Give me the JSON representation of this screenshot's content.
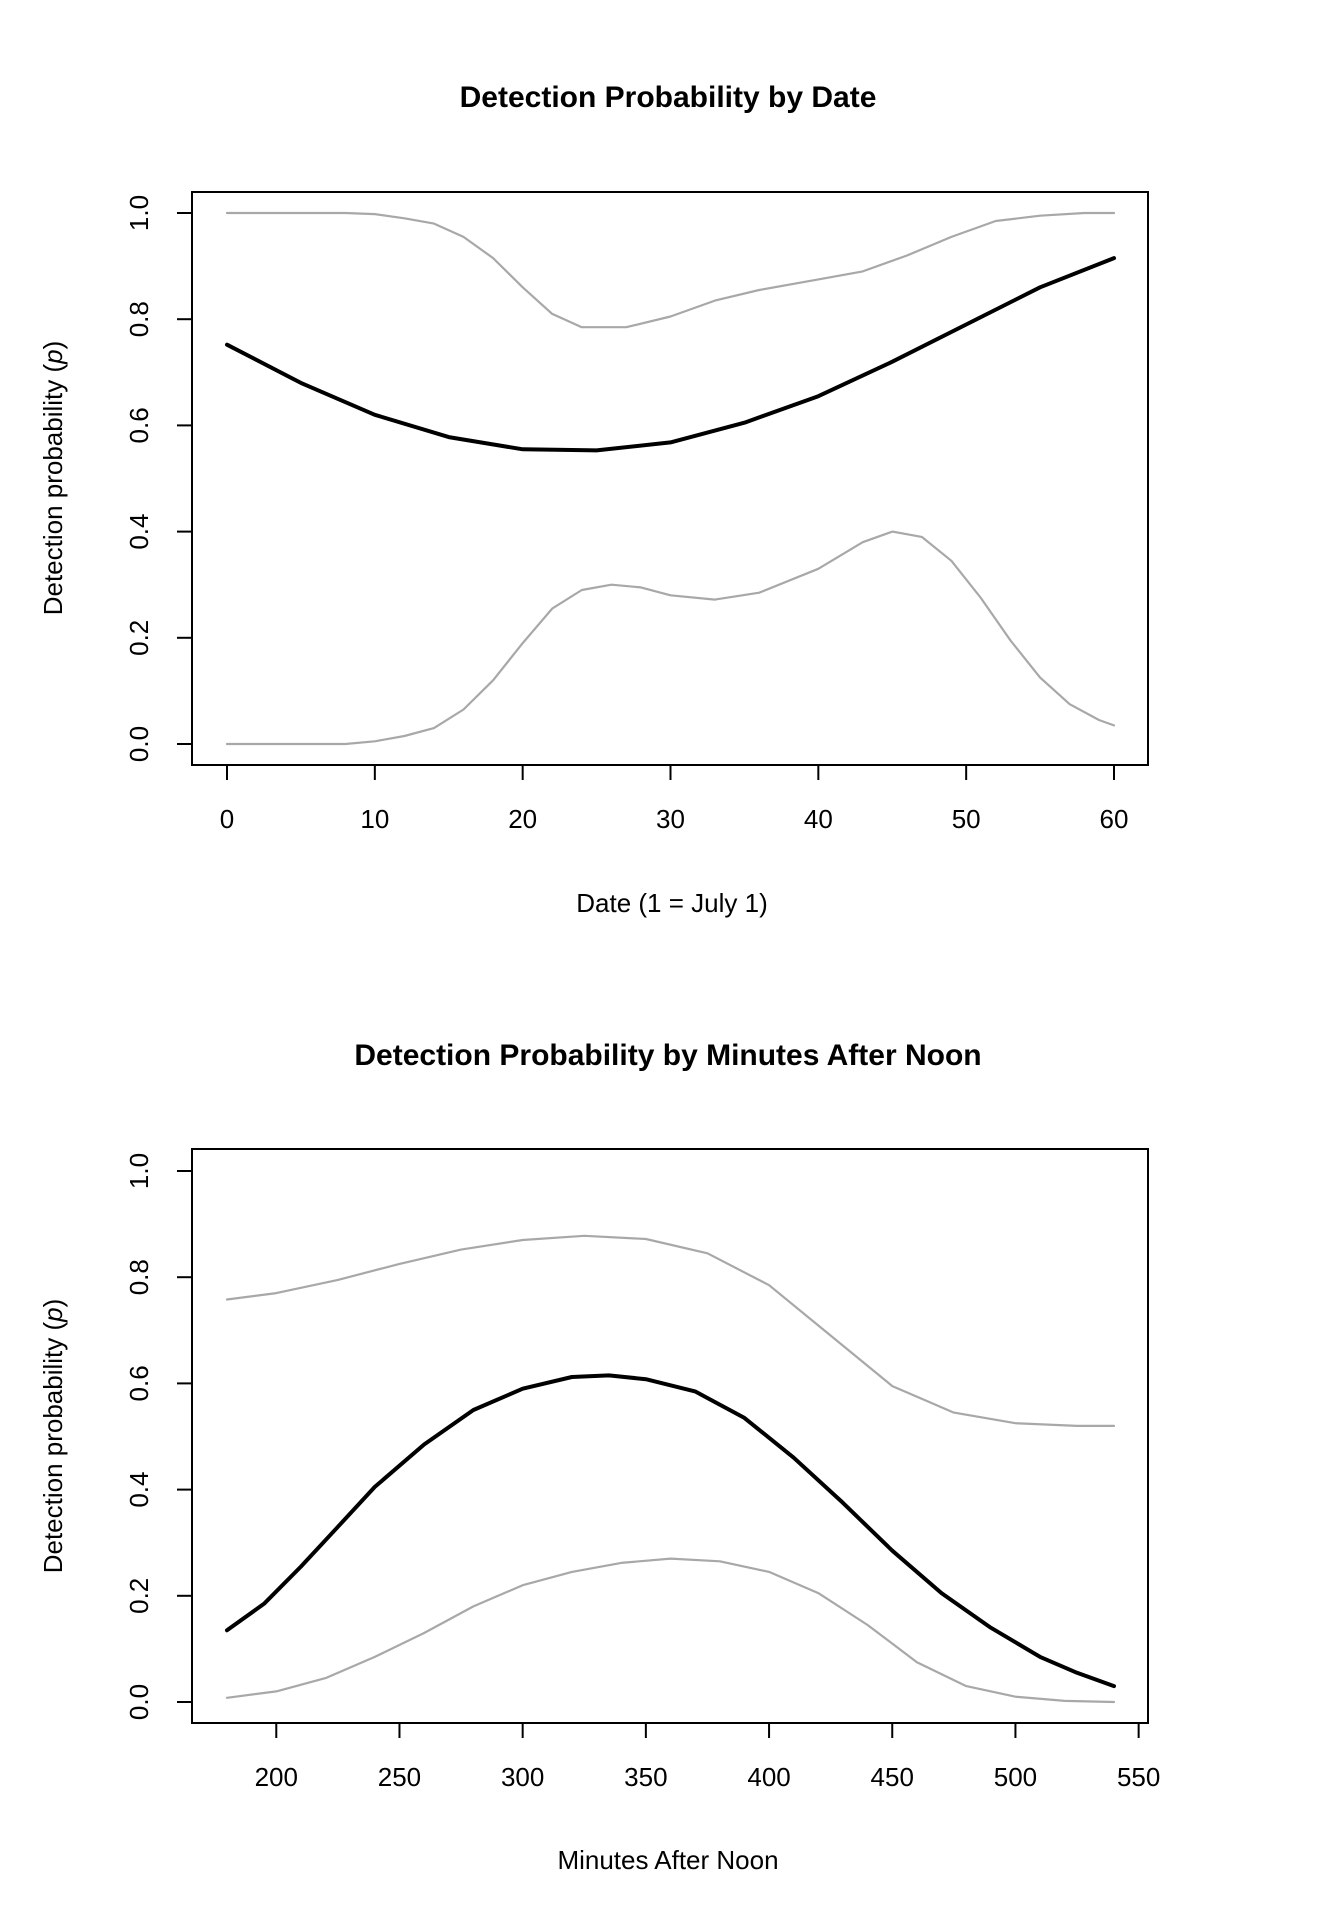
{
  "chart_data": [
    {
      "type": "line",
      "title": "Detection Probability by Date",
      "xlabel": "Date (1 = July 1)",
      "ylabel": "Detection probability (",
      "ylabel_italic": "p",
      "ylabel_end": ")",
      "xlim": [
        0,
        60
      ],
      "ylim": [
        0,
        1
      ],
      "xticks": [
        0,
        10,
        20,
        30,
        40,
        50,
        60
      ],
      "yticks": [
        "0.0",
        "0.2",
        "0.4",
        "0.6",
        "0.8",
        "1.0"
      ],
      "series": [
        {
          "name": "upper",
          "color": "#a8a8a8",
          "x": [
            0,
            4,
            8,
            10,
            12,
            14,
            16,
            18,
            20,
            22,
            24,
            25,
            27,
            30,
            33,
            36,
            40,
            43,
            46,
            49,
            52,
            55,
            58,
            60
          ],
          "y": [
            1.0,
            1.0,
            1.0,
            0.998,
            0.99,
            0.98,
            0.955,
            0.915,
            0.86,
            0.81,
            0.785,
            0.785,
            0.785,
            0.805,
            0.835,
            0.855,
            0.875,
            0.89,
            0.92,
            0.955,
            0.985,
            0.995,
            1.0,
            1.0
          ]
        },
        {
          "name": "estimate",
          "color": "#000000",
          "x": [
            0,
            5,
            10,
            15,
            20,
            25,
            30,
            35,
            40,
            45,
            50,
            55,
            60
          ],
          "y": [
            0.752,
            0.68,
            0.62,
            0.578,
            0.555,
            0.553,
            0.568,
            0.605,
            0.655,
            0.72,
            0.79,
            0.86,
            0.915
          ]
        },
        {
          "name": "lower",
          "color": "#a8a8a8",
          "x": [
            0,
            4,
            8,
            10,
            12,
            14,
            16,
            18,
            20,
            22,
            24,
            26,
            28,
            30,
            33,
            36,
            40,
            43,
            45,
            47,
            49,
            51,
            53,
            55,
            57,
            59,
            60
          ],
          "y": [
            0.0,
            0.0,
            0.0,
            0.005,
            0.015,
            0.03,
            0.065,
            0.12,
            0.19,
            0.255,
            0.29,
            0.3,
            0.295,
            0.28,
            0.272,
            0.285,
            0.33,
            0.38,
            0.4,
            0.39,
            0.345,
            0.275,
            0.195,
            0.125,
            0.075,
            0.045,
            0.035
          ]
        }
      ]
    },
    {
      "type": "line",
      "title": "Detection Probability by Minutes After Noon",
      "xlabel": "Minutes After Noon",
      "ylabel": "Detection probability (",
      "ylabel_italic": "p",
      "ylabel_end": ")",
      "xlim": [
        180,
        540
      ],
      "ylim": [
        0,
        1
      ],
      "xticks": [
        200,
        250,
        300,
        350,
        400,
        450,
        500,
        550
      ],
      "yticks": [
        "0.0",
        "0.2",
        "0.4",
        "0.6",
        "0.8",
        "1.0"
      ],
      "series": [
        {
          "name": "upper",
          "color": "#a8a8a8",
          "x": [
            180,
            200,
            225,
            250,
            275,
            300,
            325,
            350,
            375,
            400,
            425,
            450,
            475,
            500,
            525,
            540
          ],
          "y": [
            0.758,
            0.77,
            0.795,
            0.825,
            0.852,
            0.87,
            0.878,
            0.872,
            0.845,
            0.785,
            0.69,
            0.595,
            0.545,
            0.525,
            0.52,
            0.52
          ]
        },
        {
          "name": "estimate",
          "color": "#000000",
          "x": [
            180,
            195,
            210,
            225,
            240,
            260,
            280,
            300,
            320,
            335,
            350,
            370,
            390,
            410,
            430,
            450,
            470,
            490,
            510,
            525,
            540
          ],
          "y": [
            0.135,
            0.185,
            0.255,
            0.33,
            0.405,
            0.485,
            0.55,
            0.59,
            0.612,
            0.615,
            0.608,
            0.585,
            0.535,
            0.46,
            0.375,
            0.285,
            0.205,
            0.14,
            0.085,
            0.055,
            0.03
          ]
        },
        {
          "name": "lower",
          "color": "#a8a8a8",
          "x": [
            180,
            200,
            220,
            240,
            260,
            280,
            300,
            320,
            340,
            360,
            380,
            400,
            420,
            440,
            460,
            480,
            500,
            520,
            540
          ],
          "y": [
            0.008,
            0.02,
            0.045,
            0.085,
            0.13,
            0.18,
            0.22,
            0.245,
            0.262,
            0.27,
            0.265,
            0.245,
            0.205,
            0.145,
            0.075,
            0.03,
            0.01,
            0.002,
            0.0
          ]
        }
      ]
    }
  ]
}
